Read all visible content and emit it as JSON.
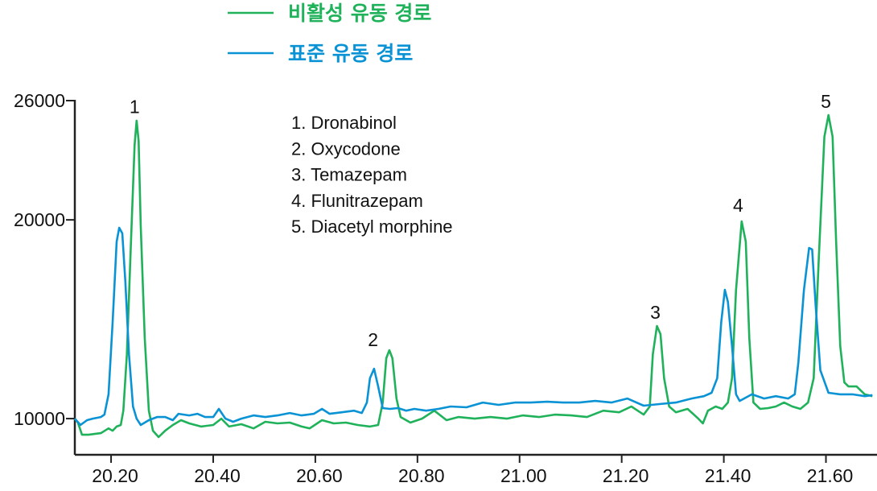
{
  "chart_data": {
    "type": "line",
    "title": "",
    "xlabel": "",
    "ylabel": "",
    "xlim": [
      20.129,
      21.7
    ],
    "ylim": [
      8180,
      26000
    ],
    "grid": false,
    "legend_placement": "top",
    "x_ticks": [
      "20.20",
      "20.40",
      "20.60",
      "20.80",
      "21.00",
      "21.20",
      "21.40",
      "21.60"
    ],
    "x_tick_values": [
      20.2,
      20.4,
      20.6,
      20.8,
      21.0,
      21.2,
      21.4,
      21.6
    ],
    "y_ticks": [
      "10000",
      "20000",
      "26000"
    ],
    "y_tick_values": [
      10000,
      20000,
      26000
    ],
    "series": [
      {
        "name": "비활성 유동 경로",
        "color": "#1fb25a",
        "points": [
          [
            20.129,
            10000
          ],
          [
            20.135,
            9800
          ],
          [
            20.143,
            9190
          ],
          [
            20.156,
            9190
          ],
          [
            20.18,
            9270
          ],
          [
            20.195,
            9510
          ],
          [
            20.203,
            9390
          ],
          [
            20.211,
            9600
          ],
          [
            20.219,
            9680
          ],
          [
            20.224,
            10400
          ],
          [
            20.231,
            13240
          ],
          [
            20.239,
            18910
          ],
          [
            20.246,
            23770
          ],
          [
            20.25,
            24990
          ],
          [
            20.254,
            23970
          ],
          [
            20.258,
            19720
          ],
          [
            20.266,
            14050
          ],
          [
            20.274,
            10400
          ],
          [
            20.282,
            9390
          ],
          [
            20.293,
            9070
          ],
          [
            20.306,
            9390
          ],
          [
            20.321,
            9680
          ],
          [
            20.337,
            9920
          ],
          [
            20.353,
            9760
          ],
          [
            20.376,
            9600
          ],
          [
            20.4,
            9680
          ],
          [
            20.416,
            10000
          ],
          [
            20.431,
            9600
          ],
          [
            20.455,
            9720
          ],
          [
            20.479,
            9510
          ],
          [
            20.502,
            9840
          ],
          [
            20.526,
            9760
          ],
          [
            20.55,
            9800
          ],
          [
            20.573,
            9600
          ],
          [
            20.589,
            9510
          ],
          [
            20.613,
            9920
          ],
          [
            20.636,
            9760
          ],
          [
            20.66,
            9800
          ],
          [
            20.683,
            9680
          ],
          [
            20.707,
            9600
          ],
          [
            20.723,
            9680
          ],
          [
            20.732,
            10810
          ],
          [
            20.739,
            13040
          ],
          [
            20.745,
            13440
          ],
          [
            20.751,
            13040
          ],
          [
            20.759,
            11010
          ],
          [
            20.767,
            10080
          ],
          [
            20.786,
            9800
          ],
          [
            20.809,
            10000
          ],
          [
            20.833,
            10400
          ],
          [
            20.857,
            9920
          ],
          [
            20.88,
            10080
          ],
          [
            20.912,
            10000
          ],
          [
            20.943,
            10080
          ],
          [
            20.975,
            10000
          ],
          [
            21.006,
            10160
          ],
          [
            21.038,
            10080
          ],
          [
            21.069,
            10200
          ],
          [
            21.101,
            10160
          ],
          [
            21.132,
            10080
          ],
          [
            21.164,
            10400
          ],
          [
            21.195,
            10320
          ],
          [
            21.219,
            10610
          ],
          [
            21.243,
            10200
          ],
          [
            21.255,
            10610
          ],
          [
            21.261,
            13240
          ],
          [
            21.269,
            14660
          ],
          [
            21.276,
            14250
          ],
          [
            21.283,
            12030
          ],
          [
            21.293,
            10610
          ],
          [
            21.306,
            10320
          ],
          [
            21.329,
            10490
          ],
          [
            21.35,
            10000
          ],
          [
            21.359,
            9760
          ],
          [
            21.369,
            10400
          ],
          [
            21.384,
            10610
          ],
          [
            21.397,
            10490
          ],
          [
            21.408,
            10810
          ],
          [
            21.416,
            12030
          ],
          [
            21.424,
            16480
          ],
          [
            21.435,
            19920
          ],
          [
            21.443,
            18910
          ],
          [
            21.45,
            14050
          ],
          [
            21.458,
            10810
          ],
          [
            21.471,
            10490
          ],
          [
            21.487,
            10530
          ],
          [
            21.502,
            10610
          ],
          [
            21.518,
            10810
          ],
          [
            21.534,
            10610
          ],
          [
            21.55,
            10490
          ],
          [
            21.565,
            10810
          ],
          [
            21.576,
            12030
          ],
          [
            21.586,
            18100
          ],
          [
            21.597,
            24180
          ],
          [
            21.605,
            25270
          ],
          [
            21.613,
            24180
          ],
          [
            21.62,
            18910
          ],
          [
            21.628,
            13650
          ],
          [
            21.636,
            11820
          ],
          [
            21.644,
            11620
          ],
          [
            21.66,
            11620
          ],
          [
            21.676,
            11220
          ],
          [
            21.691,
            11130
          ]
        ]
      },
      {
        "name": "표준 유동 경로",
        "color": "#0a93d4",
        "points": [
          [
            20.129,
            10000
          ],
          [
            20.14,
            9680
          ],
          [
            20.153,
            9920
          ],
          [
            20.164,
            10000
          ],
          [
            20.18,
            10080
          ],
          [
            20.187,
            10200
          ],
          [
            20.195,
            11220
          ],
          [
            20.203,
            14860
          ],
          [
            20.211,
            18910
          ],
          [
            20.216,
            19600
          ],
          [
            20.222,
            19320
          ],
          [
            20.228,
            16890
          ],
          [
            20.235,
            13240
          ],
          [
            20.243,
            10610
          ],
          [
            20.25,
            10000
          ],
          [
            20.258,
            9680
          ],
          [
            20.274,
            9920
          ],
          [
            20.29,
            10080
          ],
          [
            20.306,
            10080
          ],
          [
            20.321,
            9920
          ],
          [
            20.332,
            10240
          ],
          [
            20.353,
            10160
          ],
          [
            20.369,
            10240
          ],
          [
            20.384,
            10080
          ],
          [
            20.4,
            10080
          ],
          [
            20.411,
            10490
          ],
          [
            20.424,
            10000
          ],
          [
            20.439,
            9840
          ],
          [
            20.455,
            10000
          ],
          [
            20.479,
            10160
          ],
          [
            20.502,
            10080
          ],
          [
            20.526,
            10160
          ],
          [
            20.55,
            10280
          ],
          [
            20.573,
            10160
          ],
          [
            20.597,
            10240
          ],
          [
            20.613,
            10490
          ],
          [
            20.628,
            10240
          ],
          [
            20.652,
            10320
          ],
          [
            20.676,
            10400
          ],
          [
            20.691,
            10280
          ],
          [
            20.701,
            10810
          ],
          [
            20.707,
            12030
          ],
          [
            20.715,
            12510
          ],
          [
            20.723,
            11620
          ],
          [
            20.732,
            10530
          ],
          [
            20.746,
            10490
          ],
          [
            20.762,
            10530
          ],
          [
            20.778,
            10400
          ],
          [
            20.794,
            10490
          ],
          [
            20.817,
            10400
          ],
          [
            20.841,
            10490
          ],
          [
            20.865,
            10610
          ],
          [
            20.896,
            10570
          ],
          [
            20.928,
            10810
          ],
          [
            20.959,
            10690
          ],
          [
            20.991,
            10810
          ],
          [
            21.022,
            10810
          ],
          [
            21.054,
            10850
          ],
          [
            21.085,
            10810
          ],
          [
            21.117,
            10810
          ],
          [
            21.148,
            10890
          ],
          [
            21.18,
            10810
          ],
          [
            21.211,
            11010
          ],
          [
            21.243,
            10650
          ],
          [
            21.274,
            10730
          ],
          [
            21.306,
            10810
          ],
          [
            21.337,
            11010
          ],
          [
            21.361,
            11130
          ],
          [
            21.376,
            11300
          ],
          [
            21.387,
            12030
          ],
          [
            21.395,
            14860
          ],
          [
            21.402,
            16480
          ],
          [
            21.408,
            15870
          ],
          [
            21.416,
            13650
          ],
          [
            21.424,
            11220
          ],
          [
            21.431,
            10890
          ],
          [
            21.455,
            11220
          ],
          [
            21.479,
            11010
          ],
          [
            21.502,
            11130
          ],
          [
            21.526,
            11010
          ],
          [
            21.539,
            11220
          ],
          [
            21.546,
            12840
          ],
          [
            21.557,
            16480
          ],
          [
            21.567,
            18590
          ],
          [
            21.573,
            18510
          ],
          [
            21.58,
            15670
          ],
          [
            21.589,
            12430
          ],
          [
            21.605,
            11300
          ],
          [
            21.628,
            11220
          ],
          [
            21.652,
            11220
          ],
          [
            21.676,
            11130
          ],
          [
            21.691,
            11180
          ]
        ]
      }
    ],
    "annotations": [
      {
        "text": "1",
        "x": 20.246,
        "y": 25700
      },
      {
        "text": "2",
        "x": 20.713,
        "y": 13970
      },
      {
        "text": "3",
        "x": 21.266,
        "y": 15350
      },
      {
        "text": "4",
        "x": 21.428,
        "y": 20730
      },
      {
        "text": "5",
        "x": 21.6,
        "y": 25960
      }
    ],
    "compound_list": [
      "1. Dronabinol",
      "2. Oxycodone",
      "3. Temazepam",
      "4. Flunitrazepam",
      "5. Diacetyl morphine"
    ]
  }
}
